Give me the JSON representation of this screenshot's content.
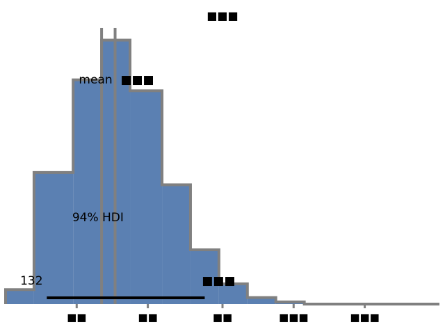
{
  "chart_data": {
    "type": "bar",
    "title": "■■■",
    "bar_color": "#5b80b2",
    "edge_color": "#808080",
    "bins": [
      {
        "x0": -1.35,
        "x1": -0.95,
        "height": 0.2
      },
      {
        "x0": -0.95,
        "x1": -0.4,
        "height": 1.82
      },
      {
        "x0": -0.4,
        "x1": 0.0,
        "height": 3.1
      },
      {
        "x0": 0.0,
        "x1": 0.4,
        "height": 3.65
      },
      {
        "x0": 0.4,
        "x1": 0.85,
        "height": 2.95
      },
      {
        "x0": 0.85,
        "x1": 1.25,
        "height": 1.65
      },
      {
        "x0": 1.25,
        "x1": 1.65,
        "height": 0.75
      },
      {
        "x0": 1.65,
        "x1": 2.05,
        "height": 0.28
      },
      {
        "x0": 2.05,
        "x1": 2.45,
        "height": 0.09
      },
      {
        "x0": 2.45,
        "x1": 2.85,
        "height": 0.03
      },
      {
        "x0": 2.85,
        "x1": 4.75,
        "height": 0.0
      }
    ],
    "xlim": [
      -1.35,
      4.75
    ],
    "ylim": [
      0,
      3.8
    ],
    "x_ticks": [
      -0.35,
      0.65,
      1.7,
      2.7,
      3.7
    ],
    "x_tick_labels": [
      "■■",
      "■■",
      "■■",
      "■■■",
      "■■■"
    ],
    "mean": 0.19,
    "mean_label": "mean",
    "mean_value_label": "■■■",
    "reference_line": 0.0,
    "hdi": {
      "low": -0.77,
      "high": 1.45,
      "label": "94% HDI"
    },
    "hdi_low_label": "132",
    "hdi_high_label": "■■■"
  }
}
